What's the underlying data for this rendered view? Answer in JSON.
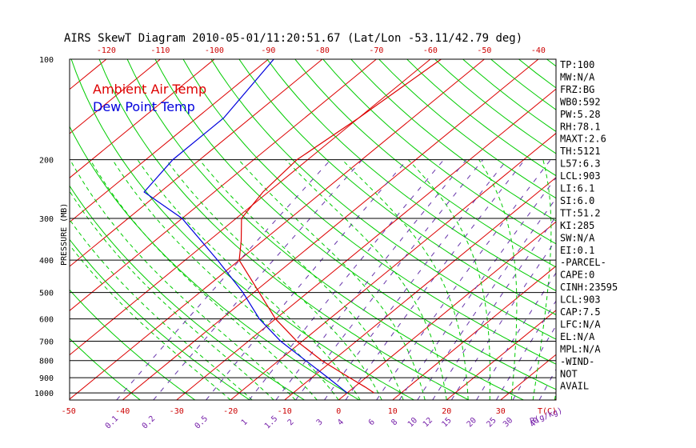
{
  "chart_data": {
    "type": "line",
    "title": "AIRS SkewT Diagram 2010-05-01/11:20:51.67 (Lat/Lon -53.11/42.79 deg)",
    "ylabel": "PRESSURE (MB)",
    "y_scale": "log",
    "ylim": [
      1050,
      100
    ],
    "pressure_ticks": [
      100,
      200,
      300,
      400,
      500,
      600,
      700,
      800,
      900,
      1000
    ],
    "top_temp_ticks": [
      "-120",
      "-110",
      "-100",
      "-90",
      "-80",
      "-70",
      "-60",
      "-50",
      "-40"
    ],
    "bottom_temp_ticks": [
      "-50",
      "-40",
      "-30",
      "-20",
      "-10",
      "0",
      "10",
      "20",
      "30"
    ],
    "bottom_temp_unit": "T(C)",
    "mixing_ratio_ticks": [
      "0.1",
      "0.2",
      "0.5",
      "1",
      "1.5",
      "2",
      "3",
      "4",
      "6",
      "8",
      "10",
      "12",
      "15",
      "20",
      "25",
      "30",
      "40"
    ],
    "mixing_ratio_unit": "R(g/kg)",
    "legend": [
      {
        "name": "Ambient Air Temp",
        "color": "#dd0000"
      },
      {
        "name": "Dew Point Temp",
        "color": "#0000dd"
      }
    ],
    "series": [
      {
        "name": "Ambient Air Temp",
        "color": "#dd0000",
        "points": [
          {
            "p": 1000,
            "t": 5
          },
          {
            "p": 960,
            "t": 2
          },
          {
            "p": 900,
            "t": -3
          },
          {
            "p": 800,
            "t": -12
          },
          {
            "p": 700,
            "t": -21
          },
          {
            "p": 600,
            "t": -30
          },
          {
            "p": 500,
            "t": -39
          },
          {
            "p": 400,
            "t": -50
          },
          {
            "p": 350,
            "t": -54
          },
          {
            "p": 300,
            "t": -59
          },
          {
            "p": 250,
            "t": -61
          },
          {
            "p": 200,
            "t": -62
          },
          {
            "p": 150,
            "t": -60
          },
          {
            "p": 100,
            "t": -58
          }
        ]
      },
      {
        "name": "Dew Point Temp",
        "color": "#0000dd",
        "points": [
          {
            "p": 1000,
            "t": 0
          },
          {
            "p": 900,
            "t": -7
          },
          {
            "p": 800,
            "t": -15
          },
          {
            "p": 700,
            "t": -24
          },
          {
            "p": 600,
            "t": -33
          },
          {
            "p": 500,
            "t": -42
          },
          {
            "p": 400,
            "t": -54
          },
          {
            "p": 300,
            "t": -70
          },
          {
            "p": 250,
            "t": -83
          },
          {
            "p": 200,
            "t": -85
          },
          {
            "p": 150,
            "t": -85
          },
          {
            "p": 100,
            "t": -89
          }
        ]
      }
    ],
    "stats": [
      "TP:100",
      "MW:N/A",
      "FRZ:BG",
      "WB0:592",
      "PW:5.28",
      "RH:78.1",
      "MAXT:2.6",
      "TH:5121",
      "L57:6.3",
      "LCL:903",
      "LI:6.1",
      "SI:6.0",
      "TT:51.2",
      "KI:285",
      "SW:N/A",
      "EI:0.1",
      "-PARCEL-",
      "CAPE:0",
      "CINH:23595",
      "LCL:903",
      "CAP:7.5",
      "LFC:N/A",
      "EL:N/A",
      "MPL:N/A",
      "-WIND-",
      "NOT",
      "AVAIL"
    ],
    "colors": {
      "isotherm": "#dd0000",
      "dry_adiabat": "#00cc00",
      "moist_adiabat": "#00cc00",
      "mixing_ratio": "#6633aa",
      "isobar": "#000000",
      "axis_tick_label": "#cc0000",
      "mixing_ratio_label": "#7722aa"
    }
  }
}
